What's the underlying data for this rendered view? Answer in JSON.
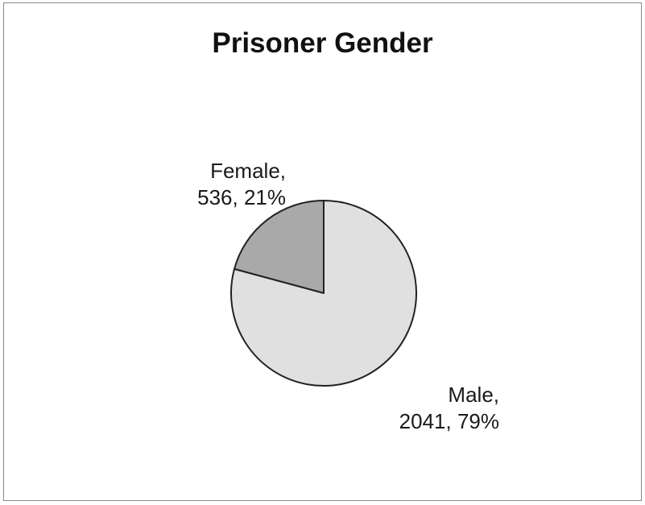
{
  "chart_data": {
    "type": "pie",
    "title": "Prisoner Gender",
    "slices": [
      {
        "label": "Female",
        "value": 536,
        "percent": "21%",
        "label_line1": "Female,",
        "label_line2": "536, 21%",
        "color": "#a9a9a9"
      },
      {
        "label": "Male",
        "value": 2041,
        "percent": "79%",
        "label_line1": "Male,",
        "label_line2": "2041, 79%",
        "color": "#e0e0e0"
      }
    ],
    "legend": false
  }
}
